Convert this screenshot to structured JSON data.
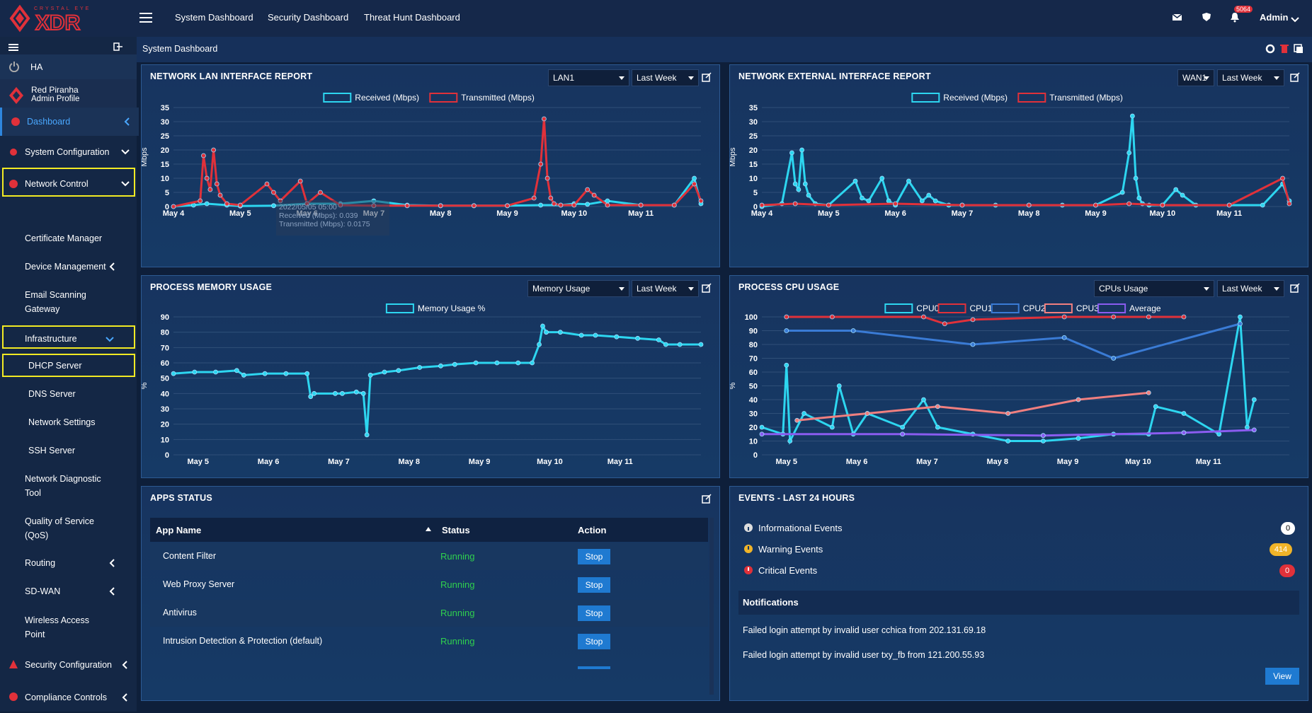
{
  "app": {
    "brand": "CRYSTAL EYE",
    "logo_text": "XDR",
    "user": "Admin",
    "notif_count": "5064"
  },
  "topnav": [
    "System Dashboard",
    "Security Dashboard",
    "Threat Hunt Dashboard"
  ],
  "page_title": "System Dashboard",
  "sidebar": {
    "ha_label": "HA",
    "profile_name": "Red Piranha",
    "profile_sub": "Admin Profile",
    "items": [
      {
        "label": "Dashboard"
      },
      {
        "label": "System Configuration"
      },
      {
        "label": "Network Control"
      },
      {
        "label": "Certificate Manager"
      },
      {
        "label": "Device Management"
      },
      {
        "label": "Email Scanning"
      },
      {
        "label": "Gateway"
      },
      {
        "label": "Infrastructure"
      },
      {
        "label": "DHCP Server"
      },
      {
        "label": "DNS Server"
      },
      {
        "label": "Network Settings"
      },
      {
        "label": "SSH Server"
      },
      {
        "label": "Network Diagnostic"
      },
      {
        "label": "Tool"
      },
      {
        "label": "Quality of Service"
      },
      {
        "label": "(QoS)"
      },
      {
        "label": "Routing"
      },
      {
        "label": "SD-WAN"
      },
      {
        "label": "Wireless Access"
      },
      {
        "label": "Point"
      },
      {
        "label": "Security Configuration"
      },
      {
        "label": "Compliance Controls"
      }
    ]
  },
  "colors": {
    "received": "#2dd6f0",
    "transmitted": "#e0313a",
    "cpu2": "#3a7bd5",
    "cpu3": "#f07f7f",
    "average": "#8a5cf0",
    "accent_highlight": "#f2ea23"
  },
  "panels": {
    "lan": {
      "title": "NETWORK LAN INTERFACE REPORT",
      "sel1": "LAN1",
      "sel2": "Last Week",
      "tooltip": {
        "date": "2022/05/05 05:00",
        "received": "Received (Mbps): 0.039",
        "transmitted": "Transmitted (Mbps): 0.0175"
      }
    },
    "wan": {
      "title": "NETWORK EXTERNAL INTERFACE REPORT",
      "sel1": "WAN1",
      "sel2": "Last Week"
    },
    "mem": {
      "title": "PROCESS MEMORY USAGE",
      "sel1": "Memory Usage",
      "sel2": "Last Week"
    },
    "cpu": {
      "title": "PROCESS CPU USAGE",
      "sel1": "CPUs Usage",
      "sel2": "Last Week"
    },
    "apps": {
      "title": "APPS STATUS",
      "col_name": "App Name",
      "col_status": "Status",
      "col_action": "Action",
      "rows": [
        {
          "name": "Content Filter",
          "status": "Running",
          "action": "Stop"
        },
        {
          "name": "Web Proxy Server",
          "status": "Running",
          "action": "Stop"
        },
        {
          "name": "Antivirus",
          "status": "Running",
          "action": "Stop"
        },
        {
          "name": "Intrusion Detection & Protection (default)",
          "status": "Running",
          "action": "Stop"
        }
      ]
    },
    "events": {
      "title": "EVENTS - LAST 24 HOURS",
      "items": [
        {
          "label": "Informational Events",
          "count": "0"
        },
        {
          "label": "Warning Events",
          "count": "414"
        },
        {
          "label": "Critical Events",
          "count": "0"
        }
      ],
      "notif_title": "Notifications",
      "notifs": [
        "Failed login attempt by invalid user cchica from 202.131.69.18",
        "Failed login attempt by invalid user txy_fb from 121.200.55.93"
      ],
      "view_label": "View"
    }
  },
  "chart_data": [
    {
      "type": "line",
      "title": "NETWORK LAN INTERFACE REPORT",
      "ylabel": "Mbps",
      "ylim": [
        0,
        35
      ],
      "yticks": [
        0,
        5,
        10,
        15,
        20,
        25,
        30,
        35
      ],
      "xticks": [
        "May 4",
        "May 5",
        "May 6",
        "May 7",
        "May 8",
        "May 9",
        "May 10",
        "May 11"
      ],
      "series": [
        {
          "name": "Received (Mbps)",
          "color": "#2dd6f0",
          "x": [
            0,
            0.3,
            0.5,
            0.8,
            1.0,
            1.5,
            2.0,
            2.5,
            3.0,
            3.5,
            4.0,
            4.5,
            5.0,
            5.5,
            5.8,
            6.0,
            6.2,
            6.5,
            7.0,
            7.5,
            7.8,
            7.9
          ],
          "y": [
            0,
            0.5,
            1,
            0.5,
            0.2,
            0.3,
            1,
            1,
            2,
            0.5,
            0.3,
            0.3,
            0.3,
            0.5,
            0.5,
            1,
            0.8,
            2,
            0.5,
            0.5,
            10,
            1
          ]
        },
        {
          "name": "Transmitted (Mbps)",
          "color": "#e0313a",
          "x": [
            0,
            0.4,
            0.45,
            0.5,
            0.55,
            0.6,
            0.65,
            0.7,
            0.8,
            1.0,
            1.4,
            1.5,
            1.6,
            1.9,
            2.0,
            2.2,
            2.5,
            3.0,
            3.5,
            4.0,
            4.5,
            5.0,
            5.4,
            5.5,
            5.55,
            5.6,
            5.65,
            5.7,
            5.8,
            6.0,
            6.2,
            6.3,
            6.5,
            7.0,
            7.5,
            7.8,
            7.9
          ],
          "y": [
            0,
            2,
            18,
            10,
            6,
            20,
            8,
            4,
            1,
            0.5,
            8,
            5,
            2,
            9,
            1,
            5,
            0.5,
            0.3,
            0.3,
            0.3,
            0.3,
            0.3,
            3,
            15,
            31,
            10,
            3,
            1,
            0.5,
            0.5,
            6,
            4,
            0.5,
            0.5,
            0.5,
            8,
            2
          ]
        }
      ]
    },
    {
      "type": "line",
      "title": "NETWORK EXTERNAL INTERFACE REPORT",
      "ylabel": "Mbps",
      "ylim": [
        0,
        35
      ],
      "yticks": [
        0,
        5,
        10,
        15,
        20,
        25,
        30,
        35
      ],
      "xticks": [
        "May 4",
        "May 5",
        "May 6",
        "May 7",
        "May 8",
        "May 9",
        "May 10",
        "May 11"
      ],
      "series": [
        {
          "name": "Received (Mbps)",
          "color": "#2dd6f0",
          "x": [
            0,
            0.3,
            0.45,
            0.5,
            0.55,
            0.6,
            0.65,
            0.7,
            0.8,
            1.0,
            1.4,
            1.5,
            1.6,
            1.8,
            1.9,
            2.0,
            2.2,
            2.4,
            2.5,
            2.6,
            2.8,
            3.0,
            3.5,
            4.0,
            4.5,
            5.0,
            5.4,
            5.5,
            5.55,
            5.6,
            5.65,
            5.7,
            5.8,
            6.0,
            6.2,
            6.3,
            6.5,
            7.0,
            7.5,
            7.8,
            7.9
          ],
          "y": [
            0,
            1,
            19,
            8,
            6,
            20,
            8,
            4,
            1,
            0.5,
            9,
            3,
            2,
            10,
            2,
            0.5,
            9,
            2,
            4,
            2,
            0.5,
            0.5,
            0.5,
            0.5,
            0.5,
            0.5,
            5,
            19,
            32,
            10,
            3,
            1,
            0.5,
            0.5,
            6,
            4,
            0.5,
            0.5,
            0.5,
            8,
            2
          ]
        },
        {
          "name": "Transmitted (Mbps)",
          "color": "#e0313a",
          "x": [
            0,
            0.5,
            1.0,
            2.0,
            3.0,
            4.0,
            5.0,
            5.5,
            6.0,
            7.0,
            7.8,
            7.9
          ],
          "y": [
            0.5,
            1,
            0.5,
            1,
            0.5,
            0.5,
            0.5,
            1,
            0.5,
            0.5,
            10,
            1
          ]
        }
      ]
    },
    {
      "type": "line",
      "title": "PROCESS MEMORY USAGE",
      "ylabel": "%",
      "ylim": [
        0,
        90
      ],
      "yticks": [
        0,
        10,
        20,
        30,
        40,
        50,
        60,
        70,
        80,
        90
      ],
      "xticks": [
        "May 5",
        "May 6",
        "May 7",
        "May 8",
        "May 9",
        "May 10",
        "May 11"
      ],
      "series": [
        {
          "name": "Memory Usage %",
          "color": "#2dd6f0",
          "x": [
            0,
            0.3,
            0.6,
            0.9,
            1.0,
            1.3,
            1.6,
            1.9,
            1.95,
            2.0,
            2.3,
            2.4,
            2.6,
            2.7,
            2.75,
            2.8,
            3.0,
            3.2,
            3.5,
            3.8,
            4.0,
            4.3,
            4.6,
            4.9,
            5.1,
            5.2,
            5.25,
            5.3,
            5.5,
            5.8,
            6.0,
            6.3,
            6.6,
            6.9,
            7.0,
            7.2,
            7.5
          ],
          "y": [
            53,
            54,
            54,
            55,
            52,
            53,
            53,
            53,
            38,
            40,
            40,
            40,
            41,
            40,
            13,
            52,
            54,
            55,
            57,
            58,
            59,
            60,
            60,
            60,
            60,
            72,
            84,
            80,
            80,
            78,
            78,
            77,
            76,
            75,
            72,
            72,
            72
          ]
        }
      ]
    },
    {
      "type": "line",
      "title": "PROCESS CPU USAGE",
      "ylabel": "%",
      "ylim": [
        0,
        100
      ],
      "yticks": [
        0,
        10,
        20,
        30,
        40,
        50,
        60,
        70,
        80,
        90,
        100
      ],
      "xticks": [
        "May 5",
        "May 6",
        "May 7",
        "May 8",
        "May 9",
        "May 10",
        "May 11"
      ],
      "series": [
        {
          "name": "CPU0",
          "color": "#2dd6f0",
          "x": [
            0,
            0.3,
            0.35,
            0.4,
            0.6,
            1.0,
            1.1,
            1.3,
            1.5,
            2.0,
            2.3,
            2.5,
            3.0,
            3.5,
            4.0,
            4.5,
            5.0,
            5.5,
            5.6,
            6.0,
            6.5,
            6.8,
            6.9,
            7.0
          ],
          "y": [
            20,
            15,
            65,
            10,
            30,
            20,
            50,
            15,
            30,
            20,
            40,
            20,
            15,
            10,
            10,
            12,
            15,
            15,
            35,
            30,
            15,
            100,
            20,
            40
          ]
        },
        {
          "name": "CPU1",
          "color": "#e0313a",
          "x": [
            0.35,
            1.0,
            2.3,
            2.6,
            3.0,
            4.3,
            5.0,
            5.5,
            6.0
          ],
          "y": [
            100,
            100,
            100,
            95,
            98,
            100,
            100,
            100,
            100
          ]
        },
        {
          "name": "CPU2",
          "color": "#3a7bd5",
          "x": [
            0.35,
            1.3,
            3.0,
            4.3,
            5.0,
            6.8
          ],
          "y": [
            90,
            90,
            80,
            85,
            70,
            95
          ]
        },
        {
          "name": "CPU3",
          "color": "#f07f7f",
          "x": [
            0.5,
            1.5,
            2.5,
            3.5,
            4.5,
            5.5
          ],
          "y": [
            25,
            30,
            35,
            30,
            40,
            45
          ]
        },
        {
          "name": "Average",
          "color": "#8a5cf0",
          "x": [
            0,
            2,
            4,
            6,
            7
          ],
          "y": [
            15,
            15,
            14,
            16,
            18
          ]
        }
      ]
    }
  ]
}
